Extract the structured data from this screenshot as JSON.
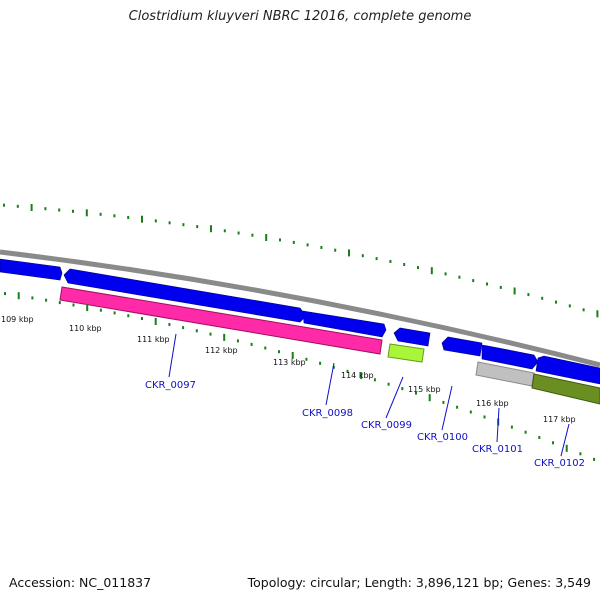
{
  "title": "Clostridium kluyveri NBRC 12016, complete genome",
  "footer": {
    "accession": "Accession: NC_011837",
    "summary": "Topology: circular; Length: 3,896,121 bp; Genes: 3,549"
  },
  "colors": {
    "backbone": "#8a8a8a",
    "forward_gene": "#0000ee",
    "gc_tick": "#1a7f1a",
    "label": "#1010c8",
    "magenta_feature": "#ff2aa8",
    "lime_feature": "#a8f53a",
    "gray_feature": "#c0c0c0",
    "olive_feature": "#6b8e23"
  },
  "kbp_labels": [
    "109 kbp",
    "110 kbp",
    "111 kbp",
    "112 kbp",
    "113 kbp",
    "114 kbp",
    "115 kbp",
    "116 kbp",
    "117 kbp"
  ],
  "gene_labels": [
    "CKR_0097",
    "CKR_0098",
    "CKR_0099",
    "CKR_0100",
    "CKR_0101",
    "CKR_0102"
  ]
}
